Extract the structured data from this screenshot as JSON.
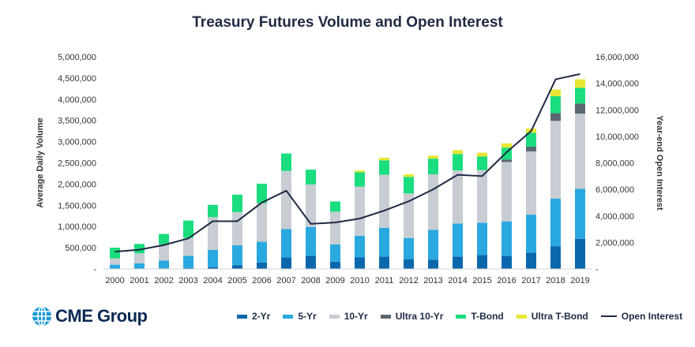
{
  "title": "Treasury Futures Volume and Open Interest",
  "logo": {
    "text": "CME Group"
  },
  "colors": {
    "two_yr": "#0a67ab",
    "five_yr": "#2aa8e0",
    "ten_yr": "#c7cdd2",
    "ultra_ten": "#5b6770",
    "t_bond": "#19dd7e",
    "ultra_t_bond": "#e6e633",
    "open_interest": "#1f2a44"
  },
  "legend": [
    {
      "label": "2-Yr",
      "color_key": "two_yr",
      "kind": "bar"
    },
    {
      "label": "5-Yr",
      "color_key": "five_yr",
      "kind": "bar"
    },
    {
      "label": "10-Yr",
      "color_key": "ten_yr",
      "kind": "bar"
    },
    {
      "label": "Ultra 10-Yr",
      "color_key": "ultra_ten",
      "kind": "bar"
    },
    {
      "label": "T-Bond",
      "color_key": "t_bond",
      "kind": "bar"
    },
    {
      "label": "Ultra T-Bond",
      "color_key": "ultra_t_bond",
      "kind": "bar"
    },
    {
      "label": "Open Interest",
      "color_key": "open_interest",
      "kind": "line"
    }
  ],
  "chart_data": {
    "type": "bar",
    "stacked": true,
    "title": "Treasury Futures Volume and Open Interest",
    "ylabel": "Average Daily Volume",
    "y2label": "Year-end Open Interest",
    "ylim": [
      0,
      5000000
    ],
    "y2lim": [
      0,
      16000000
    ],
    "yticks": [
      "-",
      "500,000",
      "1,000,000",
      "1,500,000",
      "2,000,000",
      "2,500,000",
      "3,000,000",
      "3,500,000",
      "4,000,000",
      "4,500,000",
      "5,000,000"
    ],
    "y2ticks": [
      "-",
      "2,000,000",
      "4,000,000",
      "6,000,000",
      "8,000,000",
      "10,000,000",
      "12,000,000",
      "14,000,000",
      "16,000,000"
    ],
    "categories": [
      "2000",
      "2001",
      "2002",
      "2003",
      "2004",
      "2005",
      "2006",
      "2007",
      "2008",
      "2009",
      "2010",
      "2011",
      "2012",
      "2013",
      "2014",
      "2015",
      "2016",
      "2017",
      "2018",
      "2019"
    ],
    "series": [
      {
        "name": "2-Yr",
        "color_key": "two_yr",
        "values": [
          5000,
          10000,
          15000,
          20000,
          40000,
          90000,
          150000,
          270000,
          310000,
          170000,
          270000,
          290000,
          230000,
          220000,
          290000,
          330000,
          310000,
          380000,
          530000,
          710000
        ]
      },
      {
        "name": "5-Yr",
        "color_key": "five_yr",
        "values": [
          95000,
          120000,
          180000,
          290000,
          410000,
          470000,
          490000,
          670000,
          680000,
          410000,
          510000,
          680000,
          500000,
          700000,
          780000,
          760000,
          810000,
          900000,
          1130000,
          1180000
        ]
      },
      {
        "name": "10-Yr",
        "color_key": "ten_yr",
        "values": [
          150000,
          240000,
          380000,
          420000,
          770000,
          780000,
          910000,
          1370000,
          1000000,
          770000,
          1160000,
          1250000,
          1050000,
          1310000,
          1250000,
          1240000,
          1400000,
          1490000,
          1830000,
          1770000
        ]
      },
      {
        "name": "Ultra 10-Yr",
        "color_key": "ultra_ten",
        "values": [
          0,
          0,
          0,
          0,
          0,
          0,
          0,
          0,
          0,
          0,
          0,
          0,
          0,
          0,
          0,
          0,
          60000,
          110000,
          180000,
          240000
        ]
      },
      {
        "name": "T-Bond",
        "color_key": "t_bond",
        "values": [
          250000,
          220000,
          250000,
          410000,
          290000,
          410000,
          460000,
          410000,
          350000,
          240000,
          340000,
          340000,
          390000,
          370000,
          390000,
          320000,
          280000,
          330000,
          400000,
          370000
        ]
      },
      {
        "name": "Ultra T-Bond",
        "color_key": "ultra_t_bond",
        "values": [
          0,
          0,
          0,
          0,
          0,
          0,
          0,
          0,
          0,
          0,
          40000,
          60000,
          60000,
          70000,
          90000,
          90000,
          100000,
          100000,
          160000,
          200000
        ]
      },
      {
        "name": "Open Interest",
        "color_key": "open_interest",
        "type": "line",
        "axis": "secondary",
        "values": [
          1300000,
          1450000,
          1800000,
          2300000,
          3600000,
          3600000,
          5000000,
          5900000,
          3400000,
          3500000,
          3800000,
          4400000,
          5100000,
          6000000,
          7100000,
          7000000,
          8800000,
          10400000,
          14300000,
          14700000
        ]
      }
    ]
  }
}
